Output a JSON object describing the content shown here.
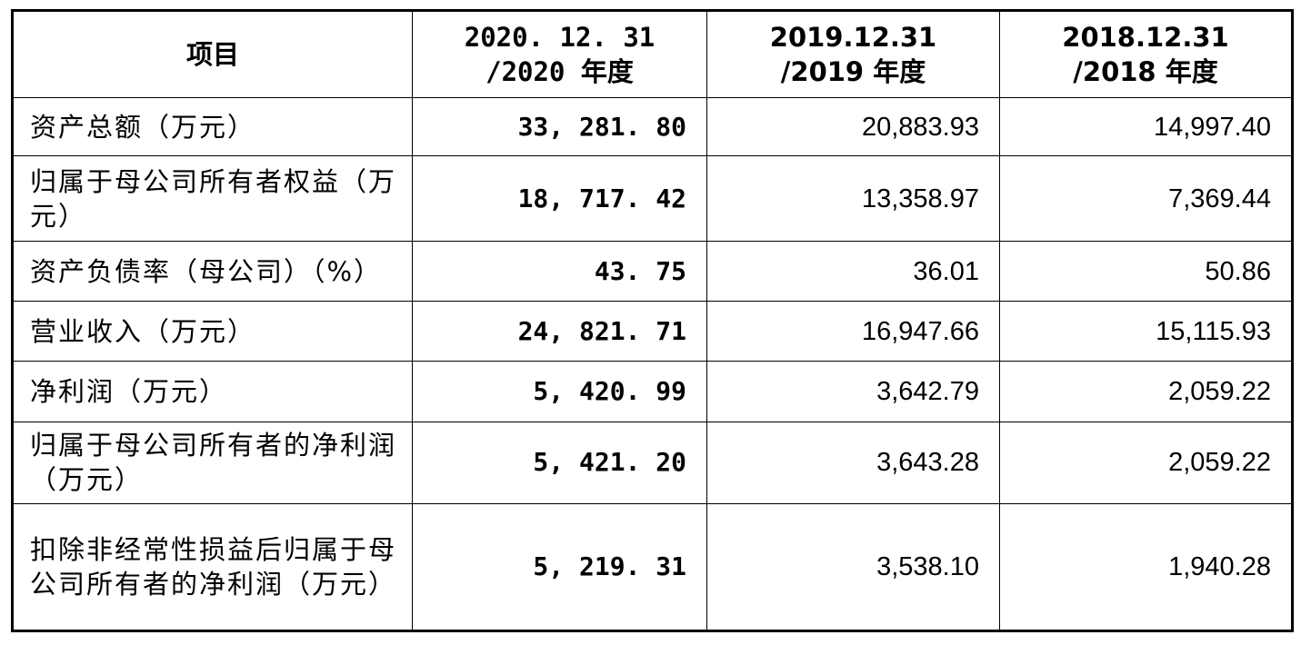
{
  "table": {
    "header": {
      "item": "项目",
      "col2020": [
        "2020. 12. 31",
        "/2020 年度"
      ],
      "col2019": [
        "2019.12.31",
        "/2019 年度"
      ],
      "col2018": [
        "2018.12.31",
        "/2018 年度"
      ]
    },
    "rows": [
      {
        "label": "资产总额（万元）",
        "v2020": "33, 281. 80",
        "v2019": "20,883.93",
        "v2018": "14,997.40"
      },
      {
        "label": "归属于母公司所有者权益（万元）",
        "v2020": "18, 717. 42",
        "v2019": "13,358.97",
        "v2018": "7,369.44"
      },
      {
        "label": "资产负债率（母公司）（%）",
        "v2020": "43. 75",
        "v2019": "36.01",
        "v2018": "50.86"
      },
      {
        "label": "营业收入（万元）",
        "v2020": "24, 821. 71",
        "v2019": "16,947.66",
        "v2018": "15,115.93"
      },
      {
        "label": "净利润（万元）",
        "v2020": "5, 420. 99",
        "v2019": "3,642.79",
        "v2018": "2,059.22"
      },
      {
        "label": "归属于母公司所有者的净利润（万元）",
        "v2020": "5, 421. 20",
        "v2019": "3,643.28",
        "v2018": "2,059.22"
      },
      {
        "label": "扣除非经常性损益后归属于母公司所有者的净利润（万元）",
        "v2020": "5, 219. 31",
        "v2019": "3,538.10",
        "v2018": "1,940.28"
      }
    ]
  }
}
